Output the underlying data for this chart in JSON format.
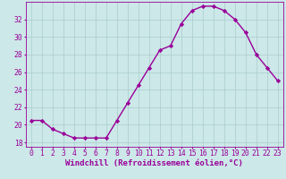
{
  "x": [
    0,
    1,
    2,
    3,
    4,
    5,
    6,
    7,
    8,
    9,
    10,
    11,
    12,
    13,
    14,
    15,
    16,
    17,
    18,
    19,
    20,
    21,
    22,
    23
  ],
  "y": [
    20.5,
    20.5,
    19.5,
    19.0,
    18.5,
    18.5,
    18.5,
    18.5,
    20.5,
    22.5,
    24.5,
    26.5,
    28.5,
    29.0,
    31.5,
    33.0,
    33.5,
    33.5,
    33.0,
    32.0,
    30.5,
    28.0,
    26.5,
    25.0
  ],
  "line_color": "#990099",
  "marker": "D",
  "marker_size": 2.2,
  "bg_color": "#cce8e8",
  "grid_color": "#aacccc",
  "xlabel": "Windchill (Refroidissement éolien,°C)",
  "xlabel_fontsize": 6.5,
  "ylim": [
    17.5,
    34.0
  ],
  "yticks": [
    18,
    20,
    22,
    24,
    26,
    28,
    30,
    32
  ],
  "xlim": [
    -0.5,
    23.5
  ],
  "xticks": [
    0,
    1,
    2,
    3,
    4,
    5,
    6,
    7,
    8,
    9,
    10,
    11,
    12,
    13,
    14,
    15,
    16,
    17,
    18,
    19,
    20,
    21,
    22,
    23
  ],
  "tick_fontsize": 5.8,
  "line_width": 1.0
}
